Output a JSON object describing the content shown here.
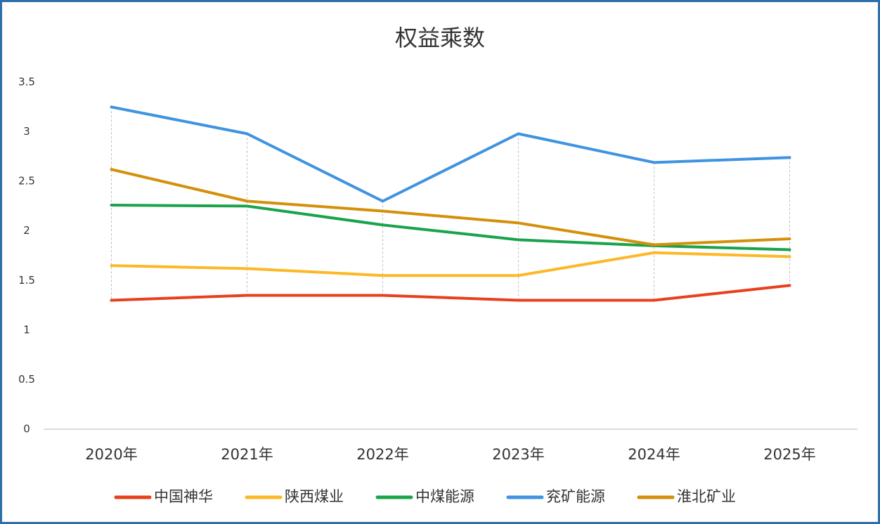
{
  "chart_data": {
    "type": "line",
    "title": "权益乘数",
    "categories": [
      "2020年",
      "2021年",
      "2022年",
      "2023年",
      "2024年",
      "2025年"
    ],
    "series": [
      {
        "name": "中国神华",
        "color": "#e8401c",
        "values": [
          1.3,
          1.35,
          1.35,
          1.3,
          1.3,
          1.45
        ]
      },
      {
        "name": "陕西煤业",
        "color": "#fdb827",
        "values": [
          1.65,
          1.62,
          1.55,
          1.55,
          1.78,
          1.74
        ]
      },
      {
        "name": "中煤能源",
        "color": "#1aa34a",
        "values": [
          2.26,
          2.25,
          2.06,
          1.91,
          1.85,
          1.81
        ]
      },
      {
        "name": "兖矿能源",
        "color": "#3f93e0",
        "values": [
          3.25,
          2.98,
          2.3,
          2.98,
          2.69,
          2.74
        ]
      },
      {
        "name": "淮北矿业",
        "color": "#d4900a",
        "values": [
          2.62,
          2.3,
          2.2,
          2.08,
          1.86,
          1.92
        ]
      }
    ],
    "ylim": [
      0,
      3.5
    ],
    "yticks": [
      0,
      0.5,
      1,
      1.5,
      2,
      2.5,
      3,
      3.5
    ],
    "drop_lines": true,
    "legend": "bottom"
  }
}
